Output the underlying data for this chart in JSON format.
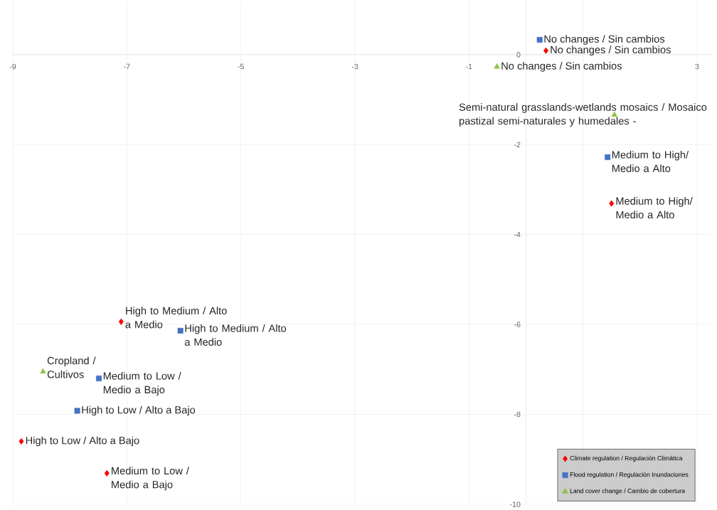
{
  "chart_data": {
    "type": "scatter",
    "xlim": [
      -9,
      3.25
    ],
    "ylim": [
      -10,
      1.2
    ],
    "xticks": [
      -9,
      -7,
      -5,
      -3,
      -1,
      {
        "value": 1,
        "label": null
      },
      3
    ],
    "yticks": [
      0,
      -2,
      -4,
      -6,
      -8,
      -10
    ],
    "grid": true,
    "legend": "bottom right",
    "series": [
      {
        "name": "Climate regulation / Regulación Climática",
        "color": "#ff0000",
        "marker": "diamond",
        "x": [
          0.35,
          1.5,
          -7.1,
          -8.85,
          -7.35
        ],
        "values": [
          0.09,
          -3.31,
          -5.94,
          -8.6,
          -9.31
        ]
      },
      {
        "name": "Flood regulation / Regulación Inundaciones",
        "color": "#4472c4",
        "marker": "square",
        "x": [
          0.24,
          1.43,
          -6.06,
          -7.49,
          -7.87
        ],
        "values": [
          0.33,
          -2.28,
          -6.14,
          -7.2,
          -7.92
        ]
      },
      {
        "name": "Land cover change / Cambio de cobertura",
        "color": "#8cc43f",
        "marker": "triangle",
        "x": [
          -0.51,
          1.55,
          -8.47
        ],
        "values": [
          -0.27,
          -1.34,
          -7.05
        ]
      }
    ],
    "annotations": [
      {
        "text": "No changes / Sin cambios",
        "x": 0.35,
        "y": 0.09
      },
      {
        "text": "Medium to High/ Medio a Alto",
        "x": 1.5,
        "y": -3.31
      },
      {
        "text": "High to Medium / Alto a Medio",
        "x": -7.1,
        "y": -5.94
      },
      {
        "text": "High to Low / Alto a Bajo",
        "x": -8.85,
        "y": -8.6
      },
      {
        "text": "Medium to Low / Medio a Bajo",
        "x": -7.35,
        "y": -9.31
      },
      {
        "text": "No changes / Sin cambios",
        "x": 0.24,
        "y": 0.33
      },
      {
        "text": "Medium to High/ Medio a Alto",
        "x": 1.43,
        "y": -2.28
      },
      {
        "text": "High to Medium / Alto a Medio",
        "x": -6.06,
        "y": -6.14
      },
      {
        "text": "Medium to Low / Medio a Bajo",
        "x": -7.49,
        "y": -7.2
      },
      {
        "text": "High to Low / Alto a Bajo",
        "x": -7.87,
        "y": -7.92
      },
      {
        "text": "No changes / Sin cambios",
        "x": -0.51,
        "y": -0.27
      },
      {
        "text": "Semi-natural grasslands-wetlands mosaics / Mosaico pastizal semi-naturales y humedales -",
        "x": 1.55,
        "y": -1.34
      },
      {
        "text": "Cropland / Cultivos",
        "x": -8.47,
        "y": -7.05
      }
    ]
  }
}
